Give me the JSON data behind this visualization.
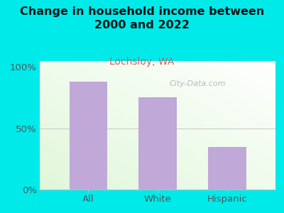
{
  "title": "Change in household income between\n2000 and 2022",
  "subtitle": "Lochsloy, WA",
  "categories": [
    "All",
    "White",
    "Hispanic"
  ],
  "values": [
    88,
    75,
    35
  ],
  "bar_color": "#c0a8d8",
  "background_color": "#00eaea",
  "plot_bg_color": "#f0fae8",
  "yticks": [
    0,
    50,
    100
  ],
  "ytick_labels": [
    "0%",
    "50%",
    "100%"
  ],
  "ylim": [
    0,
    105
  ],
  "title_fontsize": 11.5,
  "subtitle_fontsize": 10,
  "subtitle_color": "#d06060",
  "watermark": "City-Data.com",
  "title_color": "#111111",
  "tick_color": "#555555",
  "grid_color": "#cccccc"
}
